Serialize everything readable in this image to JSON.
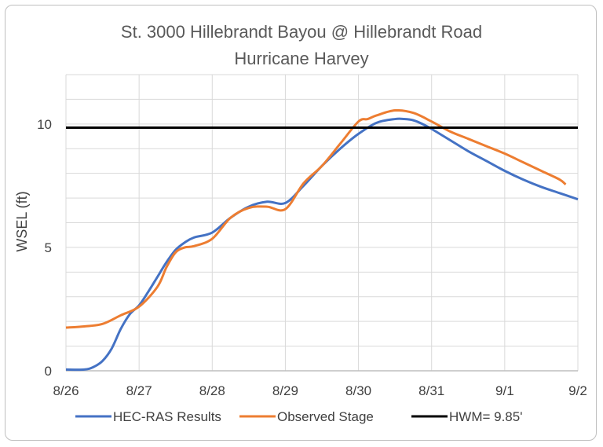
{
  "chart_data": {
    "type": "line",
    "title": "St. 3000 Hillebrandt Bayou @ Hillebrandt Road",
    "subtitle": "Hurricane Harvey",
    "ylabel": "WSEL (ft)",
    "xlabel": "",
    "xlim": [
      "8/26",
      "9/2"
    ],
    "ylim": [
      0,
      12
    ],
    "grid": true,
    "legend_position": "bottom",
    "x_tick_labels": [
      "8/26",
      "8/27",
      "8/28",
      "8/29",
      "8/30",
      "8/31",
      "9/1",
      "9/2"
    ],
    "y_tick_labels": [
      "0",
      "5",
      "10"
    ],
    "y_tick_values": [
      0,
      5,
      10
    ],
    "series": [
      {
        "name": "HEC-RAS Results",
        "color": "#4472c4",
        "x": [
          "8/26 00:00",
          "8/26 06:00",
          "8/26 09:00",
          "8/26 12:00",
          "8/26 15:00",
          "8/26 18:00",
          "8/26 21:00",
          "8/27 00:00",
          "8/27 03:00",
          "8/27 06:00",
          "8/27 09:00",
          "8/27 12:00",
          "8/27 15:00",
          "8/27 18:00",
          "8/28 00:00",
          "8/28 06:00",
          "8/28 12:00",
          "8/28 18:00",
          "8/29 00:00",
          "8/29 06:00",
          "8/29 12:00",
          "8/29 18:00",
          "8/30 00:00",
          "8/30 06:00",
          "8/30 12:00",
          "8/30 15:00",
          "8/30 18:00",
          "8/30 21:00",
          "8/31 00:00",
          "8/31 06:00",
          "8/31 12:00",
          "8/31 18:00",
          "9/1 00:00",
          "9/1 06:00",
          "9/1 12:00",
          "9/1 18:00",
          "9/2 00:00"
        ],
        "y": [
          0.05,
          0.05,
          0.15,
          0.4,
          0.9,
          1.7,
          2.3,
          2.65,
          3.2,
          3.8,
          4.4,
          4.9,
          5.2,
          5.4,
          5.6,
          6.2,
          6.65,
          6.85,
          6.8,
          7.5,
          8.3,
          9.0,
          9.6,
          10.05,
          10.2,
          10.2,
          10.15,
          10.0,
          9.8,
          9.35,
          8.9,
          8.5,
          8.1,
          7.75,
          7.45,
          7.2,
          6.95
        ]
      },
      {
        "name": "Observed Stage",
        "color": "#ed7d31",
        "x": [
          "8/26 00:00",
          "8/26 06:00",
          "8/26 12:00",
          "8/26 18:00",
          "8/27 00:00",
          "8/27 06:00",
          "8/27 09:00",
          "8/27 12:00",
          "8/27 15:00",
          "8/27 18:00",
          "8/28 00:00",
          "8/28 06:00",
          "8/28 12:00",
          "8/28 18:00",
          "8/29 00:00",
          "8/29 06:00",
          "8/29 12:00",
          "8/29 18:00",
          "8/30 00:00",
          "8/30 03:00",
          "8/30 06:00",
          "8/30 12:00",
          "8/30 18:00",
          "8/31 00:00",
          "8/31 06:00",
          "8/31 12:00",
          "8/31 18:00",
          "9/1 00:00",
          "9/1 06:00",
          "9/1 12:00",
          "9/1 18:00",
          "9/1 20:00"
        ],
        "y": [
          1.75,
          1.8,
          1.9,
          2.25,
          2.6,
          3.4,
          4.2,
          4.8,
          5.0,
          5.05,
          5.35,
          6.2,
          6.6,
          6.65,
          6.55,
          7.6,
          8.3,
          9.2,
          10.1,
          10.2,
          10.35,
          10.55,
          10.45,
          10.1,
          9.7,
          9.4,
          9.1,
          8.8,
          8.45,
          8.1,
          7.75,
          7.55
        ]
      },
      {
        "name": "HWM=  9.85'",
        "color": "#000000",
        "x": [
          "8/26 00:00",
          "9/2 00:00"
        ],
        "y": [
          9.85,
          9.85
        ]
      }
    ]
  }
}
